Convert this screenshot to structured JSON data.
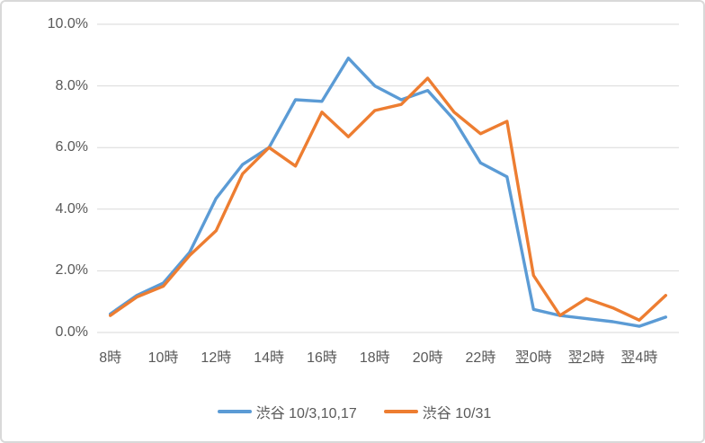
{
  "chart_data": {
    "type": "line",
    "title": "",
    "xlabel": "",
    "ylabel": "",
    "ylim": [
      0,
      10
    ],
    "grid": true,
    "legend_position": "bottom",
    "categories": [
      "8時",
      "9時",
      "10時",
      "11時",
      "12時",
      "13時",
      "14時",
      "15時",
      "16時",
      "17時",
      "18時",
      "19時",
      "20時",
      "21時",
      "22時",
      "23時",
      "翌0時",
      "翌1時",
      "翌2時",
      "翌3時",
      "翌4時",
      "翌5時"
    ],
    "x_tick_labels": [
      "8時",
      "10時",
      "12時",
      "14時",
      "16時",
      "18時",
      "20時",
      "22時",
      "翌0時",
      "翌2時",
      "翌4時"
    ],
    "y_tick_labels": [
      "10.0%",
      "8.0%",
      "6.0%",
      "4.0%",
      "2.0%",
      "0.0%"
    ],
    "y_tick_values": [
      10,
      8,
      6,
      4,
      2,
      0
    ],
    "series": [
      {
        "name": "渋谷 10/3,10,17",
        "color": "#5B9BD5",
        "values": [
          0.6,
          1.2,
          1.6,
          2.6,
          4.35,
          5.45,
          6.0,
          7.55,
          7.5,
          8.9,
          8.0,
          7.55,
          7.85,
          6.9,
          5.5,
          5.05,
          0.75,
          0.55,
          0.45,
          0.35,
          0.2,
          0.5
        ]
      },
      {
        "name": "渋谷 10/31",
        "color": "#ED7D31",
        "values": [
          0.55,
          1.15,
          1.5,
          2.5,
          3.3,
          5.15,
          6.0,
          5.4,
          7.15,
          6.35,
          7.2,
          7.4,
          8.25,
          7.15,
          6.45,
          6.85,
          1.85,
          0.55,
          1.1,
          0.8,
          0.4,
          1.2
        ]
      }
    ]
  },
  "styles": {
    "axis_text_color": "#595959",
    "gridline_color": "#D9D9D9",
    "border_color": "#D9D9D9",
    "background_color": "#FFFFFF"
  }
}
